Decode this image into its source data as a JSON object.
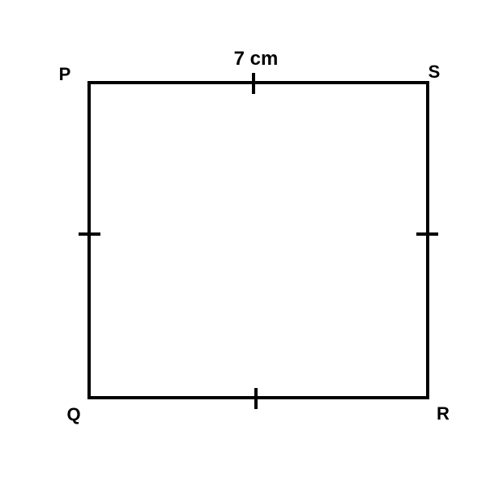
{
  "diagram": {
    "shape": "square",
    "vertices": {
      "top_left": "P",
      "top_right": "S",
      "bottom_right": "R",
      "bottom_left": "Q"
    },
    "side_label": "7 cm",
    "stroke_color": "#000000",
    "background_color": "#ffffff",
    "equal_side_tick_marks": true
  }
}
